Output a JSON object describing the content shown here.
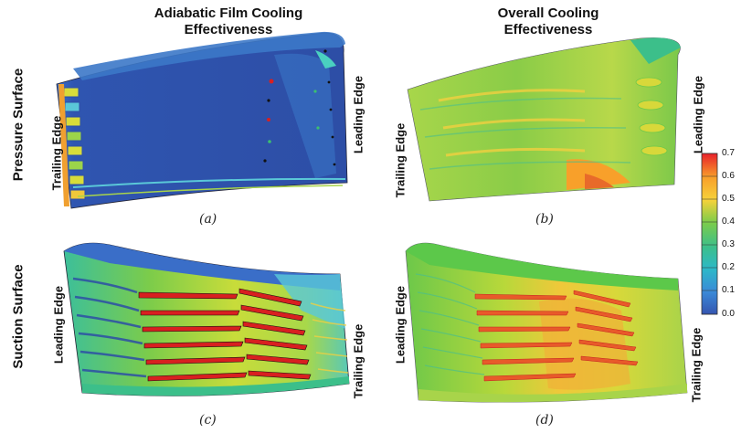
{
  "columns": {
    "left": "Adiabatic Film Cooling Effectiveness",
    "left_l1": "Adiabatic Film Cooling",
    "left_l2": "Effectiveness",
    "right_l1": "Overall Cooling",
    "right_l2": "Effectiveness"
  },
  "rows": {
    "top": "Pressure Surface",
    "bottom": "Suction Surface"
  },
  "edges": {
    "trailing": "Trailing Edge",
    "leading": "Leading Edge"
  },
  "captions": [
    "(a)",
    "(b)",
    "(c)",
    "(d)"
  ],
  "colorbar": {
    "ticks": [
      "0.7",
      "0.6",
      "0.5",
      "0.4",
      "0.3",
      "0.2",
      "0.1",
      "0.0"
    ],
    "colors": [
      "#e8202a",
      "#f25a2a",
      "#f8a02a",
      "#f6d23a",
      "#c8dc3a",
      "#7ccc4a",
      "#3cbf8a",
      "#2cb8c8",
      "#3a8ad8",
      "#3555b0"
    ]
  }
}
